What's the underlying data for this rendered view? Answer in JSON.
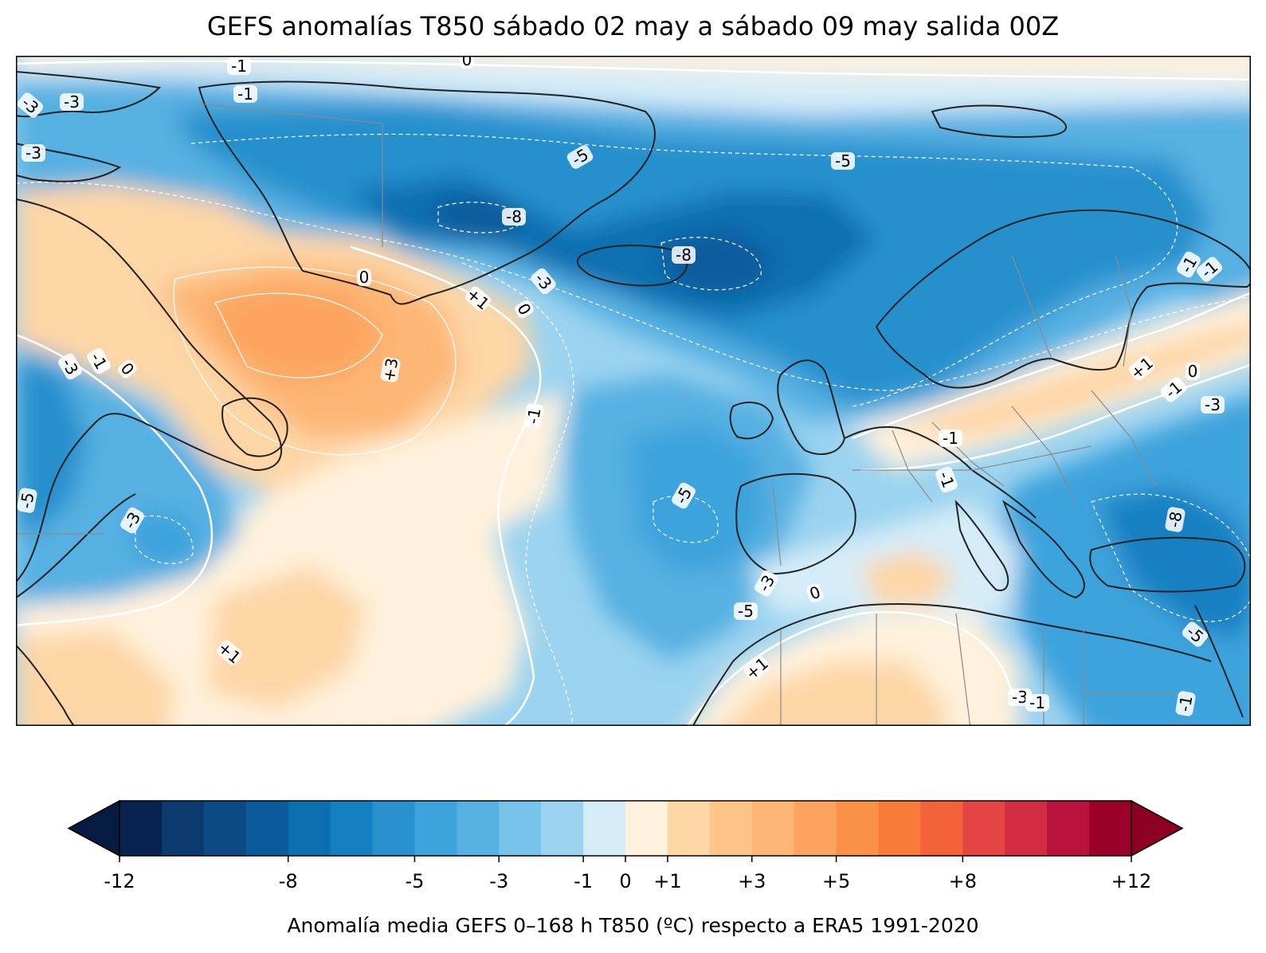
{
  "title": "GEFS anomalías T850 sábado 02 may a sábado 09 may salida 00Z",
  "colorbar": {
    "caption": "Anomalía media GEFS 0–168 h T850 (ºC) respecto a ERA5 1991-2020",
    "min": -12,
    "max": 12,
    "bounds": [
      -12,
      -11,
      -10,
      -9,
      -8,
      -7,
      -6,
      -5,
      -4,
      -3,
      -2,
      -1,
      0,
      1,
      2,
      3,
      4,
      5,
      6,
      7,
      8,
      9,
      10,
      11,
      12
    ],
    "colors": [
      "#08234f",
      "#0b3a6e",
      "#0d4a85",
      "#0b5a9c",
      "#0c6fb0",
      "#1480c2",
      "#2890cd",
      "#3da3dc",
      "#56b0e2",
      "#78c3ea",
      "#9bd3f0",
      "#d5ecf8",
      "#fff1dc",
      "#fdd6a6",
      "#fdc48a",
      "#fdb575",
      "#fca45f",
      "#fb9047",
      "#f97b3a",
      "#f4623b",
      "#e54542",
      "#d32c42",
      "#b9123c",
      "#9a0029"
    ],
    "under_color": "#051b3f",
    "over_color": "#8b0023",
    "ticks": [
      {
        "value": -12,
        "label": "-12"
      },
      {
        "value": -8,
        "label": "-8"
      },
      {
        "value": -5,
        "label": "-5"
      },
      {
        "value": -3,
        "label": "-3"
      },
      {
        "value": -1,
        "label": "-1"
      },
      {
        "value": 0,
        "label": "0"
      },
      {
        "value": 1,
        "label": "+1"
      },
      {
        "value": 3,
        "label": "+3"
      },
      {
        "value": 5,
        "label": "+5"
      },
      {
        "value": 8,
        "label": "+8"
      },
      {
        "value": 12,
        "label": "+12"
      }
    ]
  },
  "contour_labels": [
    {
      "text": "-1"
    },
    {
      "text": "0"
    },
    {
      "text": "-1"
    },
    {
      "text": "-3"
    },
    {
      "text": "-3"
    },
    {
      "text": "-3"
    },
    {
      "text": "-5"
    },
    {
      "text": "-5"
    },
    {
      "text": "-8"
    },
    {
      "text": "-8"
    },
    {
      "text": "0"
    },
    {
      "text": "+1"
    },
    {
      "text": "0"
    },
    {
      "text": "-3"
    },
    {
      "text": "+3"
    },
    {
      "text": "-3"
    },
    {
      "text": "-1"
    },
    {
      "text": "0"
    },
    {
      "text": "-1"
    },
    {
      "text": "-5"
    },
    {
      "text": "-3"
    },
    {
      "text": "-5"
    },
    {
      "text": "-1"
    },
    {
      "text": "-1"
    },
    {
      "text": "+1"
    },
    {
      "text": "0"
    },
    {
      "text": "-1"
    },
    {
      "text": "-3"
    },
    {
      "text": "-1"
    },
    {
      "text": "-8"
    },
    {
      "text": "-3"
    },
    {
      "text": "0"
    },
    {
      "text": "-5"
    },
    {
      "text": "+1"
    },
    {
      "text": "+1"
    },
    {
      "text": "-5"
    },
    {
      "text": "-3"
    },
    {
      "text": "-1"
    },
    {
      "text": "-1"
    },
    {
      "text": "-1"
    }
  ]
}
